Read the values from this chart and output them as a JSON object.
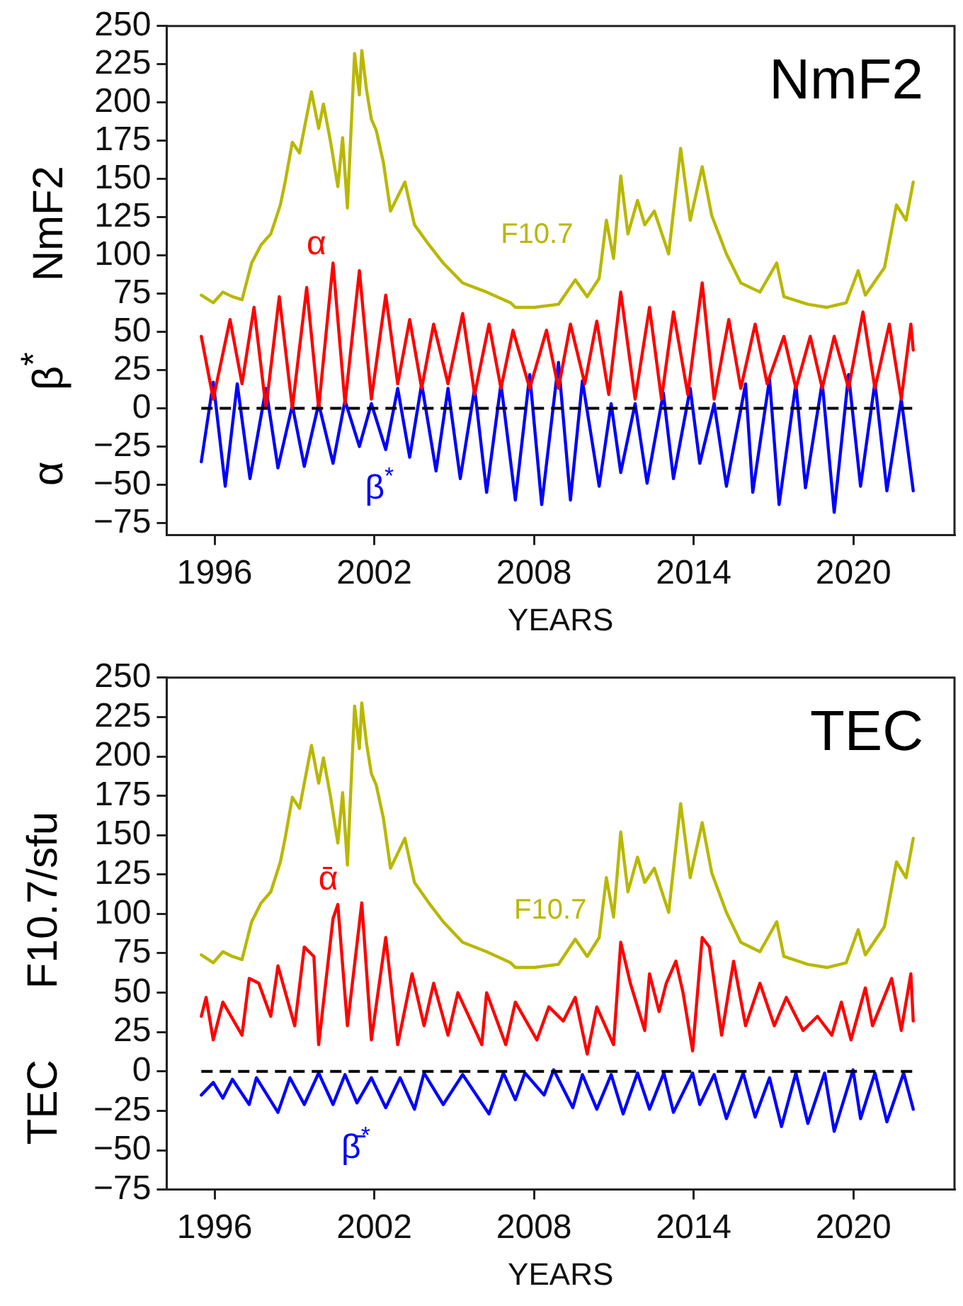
{
  "chart_data": [
    {
      "type": "line",
      "title": "NmF2",
      "xlabel": "YEARS",
      "ylabel": "α      β$^{*}$      NmF2",
      "xlim": [
        1994.2,
        2023.8
      ],
      "xticks": [
        1996,
        2002,
        2008,
        2014,
        2020
      ],
      "ylim": [
        -83,
        250
      ],
      "yticks": [
        -75,
        -50,
        -25,
        0,
        25,
        50,
        75,
        100,
        125,
        150,
        175,
        200,
        225,
        250
      ],
      "legend": false,
      "grid": false,
      "marker": "none",
      "line_style": "solid",
      "ref_lines": [
        {
          "axis": "y",
          "value": 0,
          "color": "#000000",
          "line_style": "dashed"
        }
      ],
      "series": [
        {
          "name": "F10.7",
          "color": "#b8b800",
          "x": [
            1995.5,
            1995.95,
            1996.31,
            1996.67,
            1997.03,
            1997.39,
            1997.75,
            1998.11,
            1998.47,
            1998.65,
            1998.92,
            1999.19,
            1999.64,
            1999.91,
            2000.09,
            2000.36,
            2000.63,
            2000.81,
            2000.99,
            2001.26,
            2001.44,
            2001.53,
            2001.71,
            2001.89,
            2002.07,
            2002.34,
            2002.61,
            2003.15,
            2003.51,
            2004.05,
            2004.59,
            2005.32,
            2006.22,
            2007.12,
            2007.3,
            2008.02,
            2008.92,
            2009.55,
            2010.0,
            2010.45,
            2010.72,
            2010.99,
            2011.26,
            2011.53,
            2011.89,
            2012.16,
            2012.52,
            2013.06,
            2013.51,
            2013.87,
            2014.32,
            2014.68,
            2015.23,
            2015.77,
            2016.49,
            2017.12,
            2017.39,
            2018.29,
            2019.01,
            2019.73,
            2020.18,
            2020.45,
            2021.17,
            2021.62,
            2021.98,
            2022.25
          ],
          "values": [
            74,
            69,
            76,
            73,
            71,
            95,
            107,
            114,
            133,
            148,
            174,
            167,
            207,
            183,
            199,
            174,
            145,
            177,
            131,
            232,
            205,
            234,
            208,
            189,
            182,
            161,
            129,
            148,
            120,
            107,
            95,
            82,
            76,
            69,
            66,
            66,
            68,
            84,
            73,
            85,
            123,
            98,
            152,
            114,
            136,
            120,
            129,
            101,
            170,
            123,
            158,
            126,
            101,
            82,
            76,
            95,
            73,
            68,
            66,
            69,
            90,
            74,
            92,
            133,
            123,
            148
          ]
        },
        {
          "name": "α",
          "color": "#ff0000",
          "x": [
            1995.5,
            1995.95,
            1996.58,
            1997.03,
            1997.48,
            1997.93,
            1998.43,
            1998.92,
            1999.46,
            1999.91,
            2000.45,
            2000.9,
            2001.44,
            2001.89,
            2002.43,
            2002.88,
            2003.33,
            2003.78,
            2004.23,
            2004.77,
            2005.32,
            2005.77,
            2006.31,
            2006.76,
            2007.21,
            2007.84,
            2008.47,
            2008.92,
            2009.37,
            2009.91,
            2010.36,
            2010.81,
            2011.26,
            2011.8,
            2012.34,
            2012.79,
            2013.24,
            2013.78,
            2014.32,
            2014.77,
            2015.32,
            2015.77,
            2016.31,
            2016.76,
            2017.39,
            2017.84,
            2018.38,
            2018.83,
            2019.28,
            2019.82,
            2020.36,
            2020.81,
            2021.35,
            2021.8,
            2022.16,
            2022.25
          ],
          "values": [
            47,
            6,
            58,
            16,
            66,
            0,
            73,
            0,
            79,
            0,
            95,
            3,
            90,
            6,
            74,
            16,
            58,
            13,
            55,
            16,
            62,
            9,
            55,
            13,
            51,
            13,
            51,
            13,
            55,
            16,
            57,
            9,
            76,
            6,
            66,
            6,
            63,
            9,
            82,
            6,
            58,
            13,
            55,
            16,
            47,
            13,
            47,
            13,
            47,
            13,
            63,
            13,
            55,
            6,
            55,
            38
          ]
        },
        {
          "name": "β$^{*}$",
          "color": "#0000ff",
          "x": [
            1995.5,
            1995.95,
            1996.4,
            1996.85,
            1997.33,
            1997.93,
            1998.38,
            1998.92,
            1999.37,
            1999.91,
            2000.45,
            2000.9,
            2001.44,
            2001.89,
            2002.43,
            2002.88,
            2003.33,
            2003.78,
            2004.32,
            2004.77,
            2005.23,
            2005.77,
            2006.22,
            2006.76,
            2007.3,
            2007.84,
            2008.29,
            2008.92,
            2009.37,
            2009.82,
            2010.45,
            2010.9,
            2011.26,
            2011.8,
            2012.25,
            2012.86,
            2013.24,
            2013.87,
            2014.23,
            2014.77,
            2015.23,
            2015.95,
            2016.22,
            2016.85,
            2017.21,
            2017.84,
            2018.2,
            2018.83,
            2019.28,
            2019.82,
            2020.27,
            2020.81,
            2021.26,
            2021.8,
            2022.25
          ],
          "values": [
            -35,
            17,
            -51,
            16,
            -46,
            13,
            -39,
            2,
            -38,
            3,
            -36,
            5,
            -25,
            3,
            -27,
            13,
            -32,
            16,
            -41,
            13,
            -46,
            13,
            -55,
            16,
            -60,
            22,
            -63,
            30,
            -60,
            18,
            -51,
            3,
            -42,
            3,
            -49,
            10,
            -46,
            13,
            -36,
            3,
            -51,
            16,
            -55,
            19,
            -63,
            16,
            -52,
            17,
            -68,
            22,
            -51,
            17,
            -54,
            6,
            -54
          ]
        }
      ]
    },
    {
      "type": "line",
      "title": "TEC",
      "xlabel": "YEARS",
      "ylabel": "TEC      F10.7/sfu",
      "xlim": [
        1994.2,
        2023.8
      ],
      "xticks": [
        1996,
        2002,
        2008,
        2014,
        2020
      ],
      "ylim": [
        -75,
        250
      ],
      "yticks": [
        -75,
        -50,
        -25,
        0,
        25,
        50,
        75,
        100,
        125,
        150,
        175,
        200,
        225,
        250
      ],
      "legend": false,
      "grid": false,
      "marker": "none",
      "line_style": "solid",
      "ref_lines": [
        {
          "axis": "y",
          "value": 0,
          "color": "#000000",
          "line_style": "dashed"
        }
      ],
      "series": [
        {
          "name": "F10.7",
          "color": "#b8b800",
          "x": [
            1995.5,
            1995.95,
            1996.31,
            1996.67,
            1997.03,
            1997.39,
            1997.75,
            1998.11,
            1998.47,
            1998.65,
            1998.92,
            1999.19,
            1999.64,
            1999.91,
            2000.09,
            2000.36,
            2000.63,
            2000.81,
            2000.99,
            2001.26,
            2001.44,
            2001.53,
            2001.71,
            2001.89,
            2002.07,
            2002.34,
            2002.61,
            2003.15,
            2003.51,
            2004.05,
            2004.59,
            2005.32,
            2006.22,
            2007.12,
            2007.3,
            2008.02,
            2008.92,
            2009.55,
            2010.0,
            2010.45,
            2010.72,
            2010.99,
            2011.26,
            2011.53,
            2011.89,
            2012.16,
            2012.52,
            2013.06,
            2013.51,
            2013.87,
            2014.32,
            2014.68,
            2015.23,
            2015.77,
            2016.49,
            2017.12,
            2017.39,
            2018.29,
            2019.01,
            2019.73,
            2020.18,
            2020.45,
            2021.17,
            2021.62,
            2021.98,
            2022.25
          ],
          "values": [
            74,
            69,
            76,
            73,
            71,
            95,
            107,
            114,
            133,
            148,
            174,
            167,
            207,
            183,
            199,
            174,
            145,
            177,
            131,
            232,
            205,
            234,
            208,
            189,
            182,
            161,
            129,
            148,
            120,
            107,
            95,
            82,
            76,
            69,
            66,
            66,
            68,
            84,
            73,
            85,
            123,
            98,
            152,
            114,
            136,
            120,
            129,
            101,
            170,
            123,
            158,
            126,
            101,
            82,
            76,
            95,
            73,
            68,
            66,
            69,
            90,
            74,
            92,
            133,
            123,
            148
          ]
        },
        {
          "name": "ᾱ",
          "color": "#ff0000",
          "x": [
            1995.5,
            1995.68,
            1995.95,
            1996.31,
            1997.03,
            1997.3,
            1997.66,
            1998.11,
            1998.38,
            1999.01,
            1999.37,
            1999.73,
            1999.91,
            2000.45,
            2000.63,
            2000.99,
            2001.53,
            2001.89,
            2002.43,
            2002.88,
            2003.42,
            2003.87,
            2004.23,
            2004.77,
            2005.14,
            2006.04,
            2006.22,
            2006.94,
            2007.3,
            2008.11,
            2008.56,
            2009.1,
            2009.55,
            2010.0,
            2010.36,
            2010.99,
            2011.26,
            2011.62,
            2012.16,
            2012.34,
            2012.7,
            2012.97,
            2013.33,
            2013.6,
            2013.96,
            2014.32,
            2014.59,
            2015.05,
            2015.5,
            2015.95,
            2016.49,
            2017.03,
            2017.48,
            2018.11,
            2018.65,
            2019.19,
            2019.55,
            2019.91,
            2020.45,
            2020.72,
            2021.44,
            2021.8,
            2022.16,
            2022.25
          ],
          "values": [
            35,
            47,
            20,
            44,
            23,
            59,
            56,
            35,
            67,
            29,
            79,
            73,
            17,
            97,
            106,
            29,
            107,
            20,
            85,
            17,
            62,
            29,
            56,
            23,
            50,
            17,
            50,
            17,
            44,
            20,
            41,
            32,
            47,
            11,
            41,
            17,
            82,
            56,
            26,
            62,
            38,
            56,
            70,
            50,
            13,
            85,
            79,
            23,
            70,
            29,
            56,
            29,
            47,
            26,
            35,
            23,
            44,
            20,
            53,
            29,
            59,
            26,
            62,
            32
          ]
        },
        {
          "name": "β̄$^{*}$",
          "color": "#0000ff",
          "x": [
            1995.5,
            1995.95,
            1996.31,
            1996.67,
            1997.3,
            1997.57,
            1998.38,
            1998.83,
            1999.37,
            1999.91,
            2000.45,
            2000.9,
            2001.35,
            2001.89,
            2002.43,
            2002.97,
            2003.51,
            2003.87,
            2004.59,
            2005.32,
            2006.31,
            2006.85,
            2007.3,
            2007.66,
            2008.38,
            2008.74,
            2009.46,
            2009.82,
            2010.36,
            2010.9,
            2011.35,
            2011.89,
            2012.34,
            2012.88,
            2013.24,
            2013.96,
            2014.23,
            2014.77,
            2015.23,
            2015.86,
            2016.31,
            2016.85,
            2017.3,
            2017.84,
            2018.29,
            2018.92,
            2019.28,
            2019.99,
            2020.27,
            2020.81,
            2021.26,
            2021.89,
            2022.25
          ],
          "values": [
            -15,
            -7,
            -17,
            -5,
            -21,
            -4,
            -26,
            -4,
            -21,
            -1,
            -21,
            -2,
            -20,
            -4,
            -23,
            -4,
            -24,
            -1,
            -21,
            -2,
            -27,
            -1,
            -18,
            -1,
            -15,
            1,
            -23,
            -2,
            -24,
            -2,
            -27,
            -1,
            -24,
            -1,
            -26,
            -1,
            -21,
            -2,
            -30,
            -1,
            -29,
            -4,
            -35,
            -1,
            -33,
            -1,
            -38,
            1,
            -30,
            -1,
            -32,
            -1,
            -24
          ]
        }
      ]
    }
  ]
}
